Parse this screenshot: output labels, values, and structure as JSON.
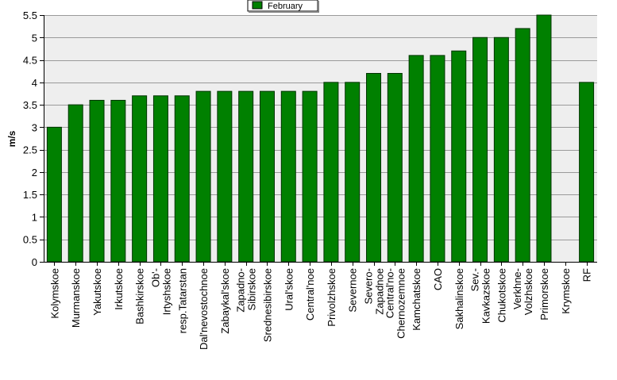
{
  "chart_data": {
    "type": "bar",
    "ylabel": "m/s",
    "xlabel": "",
    "ylim": [
      0,
      5.5
    ],
    "y_ticks": [
      "0",
      "0.5",
      "1",
      "1.5",
      "2",
      "2.5",
      "3",
      "3.5",
      "4",
      "4.5",
      "5",
      "5.5"
    ],
    "legend_position": "top-center",
    "grid": true,
    "colors": {
      "bar": "#008000",
      "bar_border": "#003300",
      "plot_bg": "#eeeeee",
      "grid": "#9a9a9a"
    },
    "series": [
      {
        "name": "February",
        "values": [
          3.0,
          3.5,
          3.6,
          3.6,
          3.7,
          3.7,
          3.7,
          3.8,
          3.8,
          3.8,
          3.8,
          3.8,
          3.8,
          4.0,
          4.0,
          4.2,
          4.2,
          4.6,
          4.6,
          4.7,
          5.0,
          5.0,
          5.2,
          5.5,
          null,
          4.0
        ]
      }
    ],
    "categories": [
      [
        "Kolymskoe"
      ],
      [
        "Murmanskoe"
      ],
      [
        "Yakutskoe"
      ],
      [
        "Irkutskoe"
      ],
      [
        "Bashkirskoe"
      ],
      [
        "Ob'-",
        "Irtyshskoe"
      ],
      [
        "resp.Tatarstan"
      ],
      [
        "Dal'nevostochnoe"
      ],
      [
        "Zabaykal'skoe"
      ],
      [
        "Zapadno-",
        "Sibirskoe"
      ],
      [
        "Srednesibirskoe"
      ],
      [
        "Ural'skoe"
      ],
      [
        "Central'noe"
      ],
      [
        "Privolzhskoe"
      ],
      [
        "Severnoe"
      ],
      [
        "Severo-",
        "Zapadnoe"
      ],
      [
        "Central'no-",
        "Chernozemnoe"
      ],
      [
        "Kamchatskoe"
      ],
      [
        "CAO"
      ],
      [
        "Sakhalinskoe"
      ],
      [
        "Sev.-",
        "Kavkazskoe"
      ],
      [
        "Chukotskoe"
      ],
      [
        "Verkhne-",
        "Volzhskoe"
      ],
      [
        "Primorskoe"
      ],
      [
        "Krymskoe"
      ],
      [
        "RF"
      ]
    ]
  }
}
